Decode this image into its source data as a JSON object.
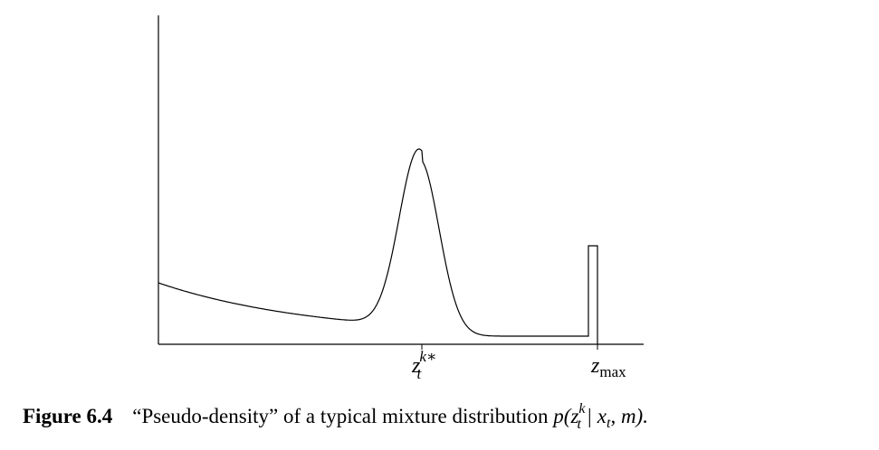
{
  "figure": {
    "x_axis_labels": [
      {
        "base": "z",
        "sub": "t",
        "sup": "k∗"
      },
      {
        "base": "z",
        "sub": "max"
      }
    ],
    "caption": {
      "label": "Figure 6.4",
      "text": "“Pseudo-density” of a typical mixture distribution",
      "math": {
        "pre": "p(",
        "var": "z",
        "sub": "t",
        "sup": "k",
        "mid": " | x",
        "mid_sub": "t",
        "post": ", m)."
      }
    }
  }
}
